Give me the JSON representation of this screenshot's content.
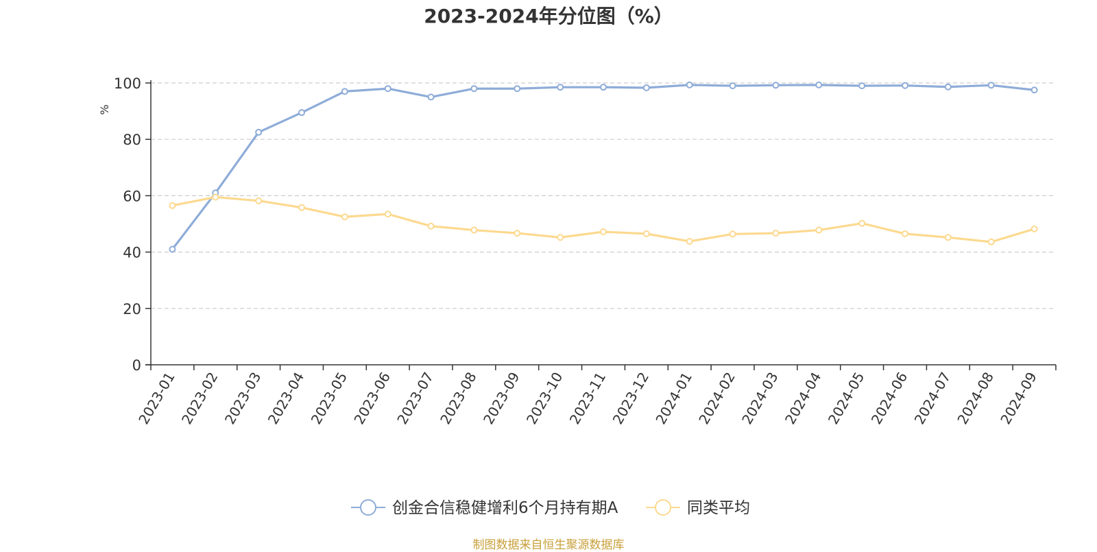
{
  "chart_data": {
    "type": "line",
    "title": "2023-2024年分位图（%）",
    "ylabel": "%",
    "xlabel": "",
    "ylim": [
      0,
      100
    ],
    "yticks": [
      0,
      20,
      40,
      60,
      80,
      100
    ],
    "grid": true,
    "legend_position": "bottom-center",
    "categories": [
      "2023-01",
      "2023-02",
      "2023-03",
      "2023-04",
      "2023-05",
      "2023-06",
      "2023-07",
      "2023-08",
      "2023-09",
      "2023-10",
      "2023-11",
      "2023-12",
      "2024-01",
      "2024-02",
      "2024-03",
      "2024-04",
      "2024-05",
      "2024-06",
      "2024-07",
      "2024-08",
      "2024-09"
    ],
    "series": [
      {
        "name": "创金合信稳健增利6个月持有期A",
        "color": "#8eacd8",
        "values": [
          41.0,
          61.0,
          82.5,
          89.5,
          97.0,
          98.0,
          95.0,
          98.0,
          98.0,
          98.5,
          98.5,
          98.3,
          99.3,
          99.0,
          99.2,
          99.3,
          99.0,
          99.1,
          98.6,
          99.2,
          97.5
        ]
      },
      {
        "name": "同类平均",
        "color": "#fcd98f",
        "values": [
          56.5,
          59.5,
          58.2,
          55.8,
          52.5,
          53.5,
          49.2,
          47.8,
          46.7,
          45.2,
          47.2,
          46.5,
          43.8,
          46.4,
          46.7,
          47.8,
          50.2,
          46.5,
          45.2,
          43.6,
          48.2
        ]
      }
    ]
  },
  "footer": {
    "source": "制图数据来自恒生聚源数据库"
  }
}
